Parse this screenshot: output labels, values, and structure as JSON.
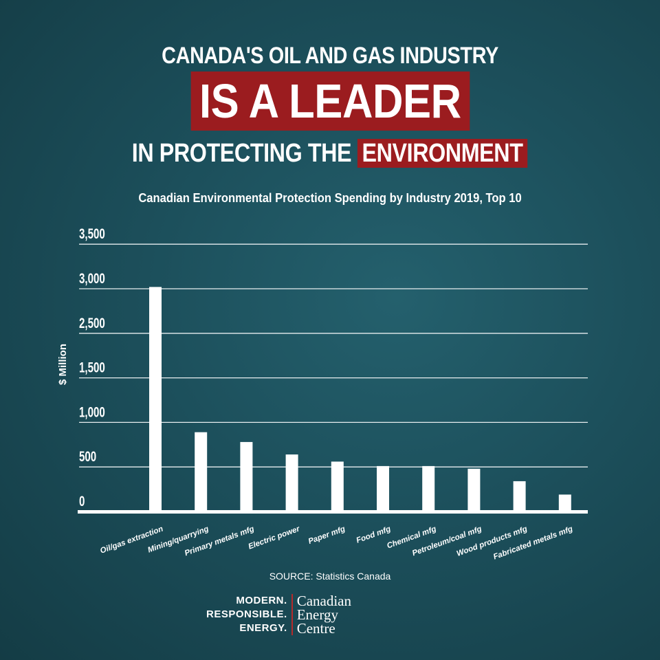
{
  "headline": {
    "line1": "CANADA'S OIL AND GAS INDUSTRY",
    "line2": "IS A LEADER",
    "line3_a": "IN PROTECTING THE",
    "line3_b": "ENVIRONMENT"
  },
  "colors": {
    "background": "#1c4f5b",
    "accent_red": "#9b1c1f",
    "bars": "#ffffff"
  },
  "chart_data": {
    "type": "bar",
    "title": "Canadian Environmental Protection Spending by Industry 2019, Top 10",
    "ylabel": "$ Million",
    "xlabel": "",
    "ytick_labels": [
      "0",
      "500",
      "1,000",
      "1,500",
      "2,500",
      "3,000",
      "3,500"
    ],
    "ytick_values": [
      0,
      500,
      1000,
      1500,
      2500,
      3000,
      3500
    ],
    "grid": true,
    "categories": [
      "Oil/gas extraction",
      "Mining/quarrying",
      "Primary metals mfg",
      "Electric power",
      "Paper mfg",
      "Food mfg",
      "Chemical mfg",
      "Petroleum/coal mfg",
      "Wood products mfg",
      "Fabricated metals mfg"
    ],
    "values": [
      3020,
      890,
      780,
      640,
      560,
      510,
      510,
      480,
      340,
      190
    ]
  },
  "source": "SOURCE: Statistics Canada",
  "logo": {
    "tagline": [
      "MODERN.",
      "RESPONSIBLE.",
      "ENERGY."
    ],
    "name": [
      "Canadian",
      "Energy",
      "Centre"
    ]
  }
}
